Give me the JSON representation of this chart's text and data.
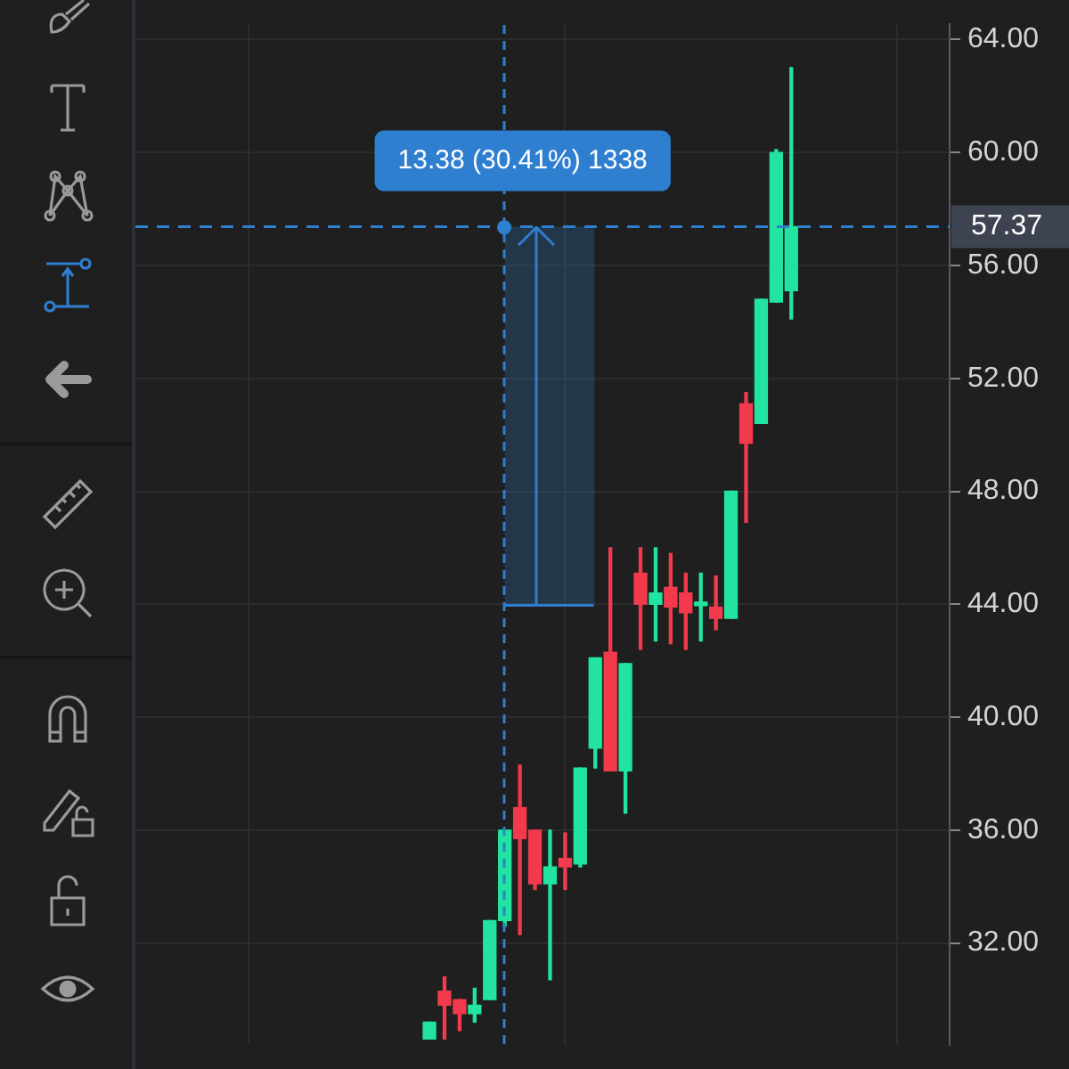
{
  "chart_data": {
    "type": "candlestick",
    "categories": [
      null,
      null,
      null,
      null,
      null,
      null,
      null,
      null,
      null,
      null,
      null,
      null,
      null,
      null,
      null,
      null,
      null,
      null,
      null,
      null,
      null,
      null,
      null,
      null,
      null,
      null,
      null,
      null,
      null,
      null,
      null,
      null,
      null,
      null,
      null,
      null,
      null,
      null,
      null,
      null,
      null,
      null,
      null,
      null,
      null,
      null,
      null,
      null,
      null,
      null,
      null,
      null,
      null,
      null
    ],
    "ohlc": [
      null,
      null,
      null,
      null,
      null,
      null,
      null,
      null,
      null,
      null,
      null,
      null,
      null,
      null,
      null,
      null,
      null,
      null,
      null,
      [
        28.6,
        29.2,
        28.6,
        29.2
      ],
      [
        30.3,
        30.8,
        28.6,
        29.8
      ],
      [
        30.0,
        30.0,
        28.9,
        29.5
      ],
      [
        29.5,
        30.4,
        29.2,
        29.8
      ],
      [
        30.0,
        32.8,
        30.0,
        32.8
      ],
      [
        32.8,
        36.0,
        32.6,
        36.0
      ],
      [
        36.8,
        38.3,
        32.3,
        35.7
      ],
      [
        36.0,
        36.0,
        33.9,
        34.1
      ],
      [
        34.1,
        36.0,
        30.7,
        34.7
      ],
      [
        35.0,
        35.9,
        33.9,
        34.7
      ],
      [
        34.8,
        38.2,
        34.7,
        38.2
      ],
      [
        38.9,
        42.1,
        38.2,
        42.1
      ],
      [
        42.3,
        46.0,
        38.1,
        38.1
      ],
      [
        38.1,
        41.9,
        36.6,
        41.9
      ],
      [
        45.1,
        46.0,
        42.4,
        44.0
      ],
      [
        44.0,
        46.0,
        42.7,
        44.4
      ],
      [
        44.6,
        45.8,
        42.6,
        43.9
      ],
      [
        44.4,
        45.1,
        42.4,
        43.7
      ],
      [
        43.95,
        45.1,
        42.7,
        44.05
      ],
      [
        43.9,
        45.0,
        43.1,
        43.5
      ],
      [
        43.5,
        48.0,
        43.5,
        48.0
      ],
      [
        51.1,
        51.5,
        46.9,
        49.7
      ],
      [
        50.4,
        54.8,
        50.4,
        54.8
      ],
      [
        54.7,
        60.1,
        54.7,
        60.0
      ],
      [
        55.1,
        63.0,
        54.1,
        57.37
      ],
      null,
      null,
      null,
      null,
      null,
      null,
      null,
      null,
      null,
      null
    ],
    "ylim": [
      28.4,
      64.54
    ],
    "yticks": [
      {
        "value": 32,
        "label": "32.00"
      },
      {
        "value": 36,
        "label": "36.00"
      },
      {
        "value": 40,
        "label": "40.00"
      },
      {
        "value": 44,
        "label": "44.00"
      },
      {
        "value": 48,
        "label": "48.00"
      },
      {
        "value": 52,
        "label": "52.00"
      },
      {
        "value": 56,
        "label": "56.00"
      },
      {
        "value": 60,
        "label": "60.00"
      },
      {
        "value": 64,
        "label": "64.00"
      }
    ],
    "grid": true,
    "tick_labels": "y",
    "ref_lines": [
      {
        "axis": "y",
        "value": 57.37,
        "label": "57.37",
        "color": "#2f7fd0",
        "line_style": "dashed"
      }
    ],
    "bands": [
      {
        "axis": "y",
        "from": 43.99,
        "to": 57.37,
        "color": "#2f7fd0"
      }
    ],
    "annotations": [
      {
        "text": "13.38 (30.41%) 1338",
        "y": 57.37
      }
    ]
  }
}
